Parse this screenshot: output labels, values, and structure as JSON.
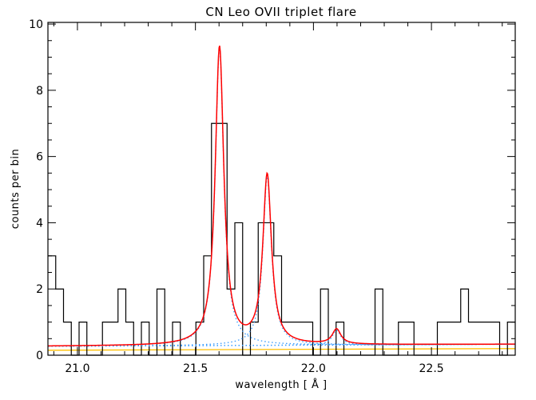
{
  "chart_data": {
    "type": "line",
    "title": "CN Leo OVII triplet flare",
    "xlabel": "wavelength [ Å ]",
    "ylabel": "counts per bin",
    "xlim": [
      20.875,
      22.855
    ],
    "ylim": [
      0,
      10.05
    ],
    "xticks": [
      21.0,
      21.5,
      22.0,
      22.5
    ],
    "xtick_labels": [
      "21.0",
      "21.5",
      "22.0",
      "22.5"
    ],
    "xminor_step": 0.1,
    "yticks": [
      0,
      2,
      4,
      6,
      8,
      10
    ],
    "ytick_labels": [
      "0",
      "2",
      "4",
      "6",
      "8",
      "10"
    ],
    "yminor_step": 0.5,
    "grid": false,
    "histogram": {
      "color": "#000000",
      "bin_start": 20.875,
      "bin_width": 0.033,
      "counts": [
        3,
        2,
        1,
        0,
        1,
        0,
        0,
        1,
        1,
        2,
        1,
        0,
        1,
        0,
        2,
        0,
        1,
        0,
        0,
        1,
        3,
        7,
        7,
        2,
        4,
        0,
        1,
        4,
        4,
        3,
        1,
        1,
        1,
        1,
        0,
        2,
        0,
        1,
        0,
        0,
        0,
        0,
        2,
        0,
        0,
        1,
        1,
        0,
        0,
        0,
        1,
        1,
        1,
        2,
        1,
        1,
        1,
        1,
        0,
        1
      ]
    },
    "model": {
      "total_color": "#ff0000",
      "component_color": "#3399ff",
      "continuum": [
        0.27,
        0.33
      ],
      "lines": [
        {
          "center": 21.602,
          "amplitude": 9.0,
          "width": 0.022
        },
        {
          "center": 21.804,
          "amplitude": 5.1,
          "width": 0.022
        },
        {
          "center": 22.098,
          "amplitude": 0.45,
          "width": 0.022
        }
      ]
    },
    "background": {
      "color": "#ffc000",
      "values": [
        0.15,
        0.2
      ]
    }
  }
}
